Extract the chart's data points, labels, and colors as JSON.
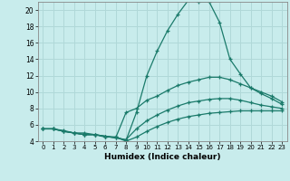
{
  "xlabel": "Humidex (Indice chaleur)",
  "background_color": "#c8ecec",
  "grid_color": "#b0d8d8",
  "line_color": "#1a7a6a",
  "xlim": [
    -0.5,
    23.5
  ],
  "ylim": [
    4,
    21
  ],
  "yticks": [
    4,
    6,
    8,
    10,
    12,
    14,
    16,
    18,
    20
  ],
  "xticks": [
    0,
    1,
    2,
    3,
    4,
    5,
    6,
    7,
    8,
    9,
    10,
    11,
    12,
    13,
    14,
    15,
    16,
    17,
    18,
    19,
    20,
    21,
    22,
    23
  ],
  "series": [
    {
      "x": [
        0,
        1,
        2,
        3,
        4,
        5,
        6,
        7,
        8,
        9,
        10,
        11,
        12,
        13,
        14,
        15,
        16,
        17,
        18,
        19,
        20,
        21,
        22,
        23
      ],
      "y": [
        5.5,
        5.5,
        5.3,
        5.0,
        5.0,
        4.8,
        4.6,
        4.5,
        4.1,
        7.5,
        12.0,
        15.0,
        17.5,
        19.5,
        21.2,
        21.0,
        21.0,
        18.5,
        14.0,
        12.2,
        10.5,
        10.0,
        9.5,
        8.8
      ]
    },
    {
      "x": [
        0,
        1,
        2,
        3,
        4,
        5,
        6,
        7,
        8,
        9,
        10,
        11,
        12,
        13,
        14,
        15,
        16,
        17,
        18,
        19,
        20,
        21,
        22,
        23
      ],
      "y": [
        5.5,
        5.5,
        5.2,
        5.0,
        4.8,
        4.8,
        4.6,
        4.4,
        7.5,
        8.0,
        9.0,
        9.5,
        10.2,
        10.8,
        11.2,
        11.5,
        11.8,
        11.8,
        11.5,
        11.0,
        10.5,
        9.8,
        9.2,
        8.5
      ]
    },
    {
      "x": [
        0,
        1,
        2,
        3,
        4,
        5,
        6,
        7,
        8,
        9,
        10,
        11,
        12,
        13,
        14,
        15,
        16,
        17,
        18,
        19,
        20,
        21,
        22,
        23
      ],
      "y": [
        5.5,
        5.5,
        5.2,
        5.0,
        4.8,
        4.8,
        4.6,
        4.4,
        4.2,
        5.5,
        6.5,
        7.2,
        7.8,
        8.3,
        8.7,
        8.9,
        9.1,
        9.2,
        9.2,
        9.0,
        8.7,
        8.4,
        8.2,
        8.0
      ]
    },
    {
      "x": [
        0,
        1,
        2,
        3,
        4,
        5,
        6,
        7,
        8,
        9,
        10,
        11,
        12,
        13,
        14,
        15,
        16,
        17,
        18,
        19,
        20,
        21,
        22,
        23
      ],
      "y": [
        5.5,
        5.5,
        5.2,
        5.0,
        4.8,
        4.8,
        4.5,
        4.5,
        4.0,
        4.5,
        5.2,
        5.8,
        6.3,
        6.7,
        7.0,
        7.2,
        7.4,
        7.5,
        7.6,
        7.7,
        7.7,
        7.7,
        7.7,
        7.7
      ]
    }
  ]
}
